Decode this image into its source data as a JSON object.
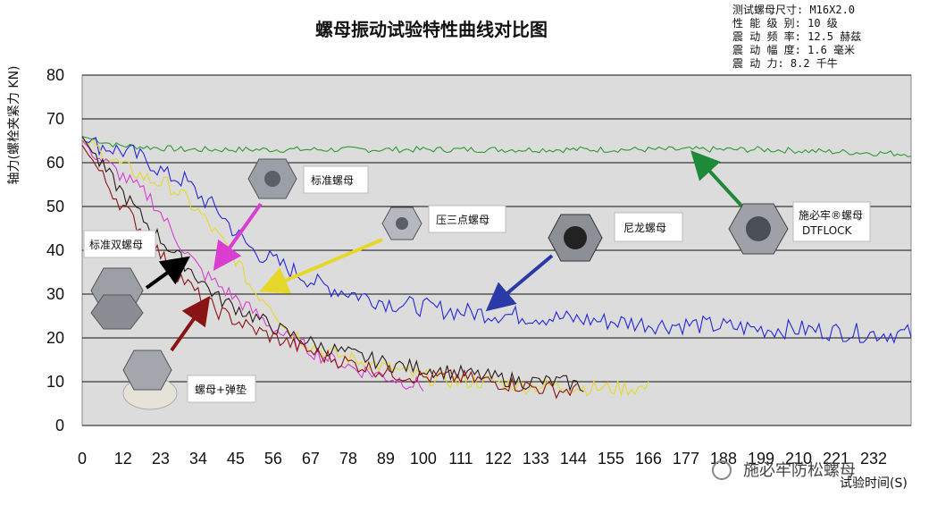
{
  "chart_data": {
    "type": "line",
    "title": "螺母振动试验特性曲线对比图",
    "ylabel": "轴力(螺栓夹紧力 KN)",
    "xlabel": "试验时间(S)",
    "ylim": [
      0,
      80
    ],
    "xlim": [
      0,
      243
    ],
    "yticks": [
      "0",
      "10",
      "20",
      "30",
      "40",
      "50",
      "60",
      "70",
      "80"
    ],
    "xticks": [
      "0",
      "12",
      "23",
      "34",
      "45",
      "56",
      "67",
      "78",
      "89",
      "100",
      "111",
      "122",
      "133",
      "144",
      "155",
      "166",
      "177",
      "188",
      "199",
      "210",
      "221",
      "232"
    ],
    "grid": true,
    "series": [
      {
        "name": "施必牢®螺母 DTFLOCK",
        "color": "#2e9a35",
        "x": [
          0,
          5,
          10,
          20,
          30,
          40,
          60,
          80,
          100,
          120,
          140,
          160,
          180,
          200,
          220,
          243
        ],
        "y": [
          66,
          65,
          64,
          63.5,
          63,
          63,
          63,
          63,
          63,
          63,
          63,
          63,
          63,
          63,
          62.5,
          62
        ]
      },
      {
        "name": "尼龙螺母",
        "color": "#2626d8",
        "x": [
          0,
          5,
          10,
          15,
          20,
          25,
          30,
          35,
          40,
          45,
          50,
          55,
          60,
          65,
          70,
          80,
          90,
          100,
          110,
          120,
          130,
          140,
          150,
          160,
          170,
          180,
          190,
          200,
          210,
          220,
          230,
          243
        ],
        "y": [
          65,
          64,
          63,
          62,
          60,
          57,
          56,
          52,
          49,
          44,
          40,
          38,
          36,
          34,
          32,
          30,
          28,
          27,
          26,
          25.5,
          25,
          24.5,
          24,
          23.5,
          23,
          23,
          22.5,
          22,
          22,
          21.5,
          21,
          21
        ]
      },
      {
        "name": "压三点螺母",
        "color": "#e6d82a",
        "x": [
          0,
          5,
          10,
          20,
          25,
          30,
          35,
          40,
          45,
          50,
          55,
          60,
          70,
          80,
          90,
          100,
          110,
          120,
          130,
          140,
          150,
          160,
          166
        ],
        "y": [
          65,
          63,
          60,
          56,
          55,
          52,
          48,
          43,
          38,
          31,
          28,
          22,
          17,
          15,
          13,
          11,
          10,
          10,
          9,
          9,
          8.5,
          8.5,
          8.5
        ]
      },
      {
        "name": "标准螺母",
        "color": "#d93ed1",
        "x": [
          0,
          5,
          10,
          15,
          20,
          25,
          30,
          35,
          40,
          45,
          50,
          55,
          60,
          70,
          80,
          90,
          100
        ],
        "y": [
          65,
          61,
          58,
          55,
          52,
          46,
          40,
          35,
          32,
          29,
          26,
          23,
          20,
          16,
          13,
          11,
          9
        ]
      },
      {
        "name": "标准双螺母",
        "color": "#2a1a1a",
        "x": [
          0,
          5,
          10,
          15,
          20,
          25,
          30,
          35,
          40,
          45,
          50,
          60,
          70,
          80,
          90,
          100,
          110,
          120,
          130,
          140,
          147
        ],
        "y": [
          66,
          60,
          55,
          50,
          45,
          41,
          37,
          33,
          29,
          27,
          25,
          21,
          18,
          16,
          14,
          13,
          12,
          11,
          10,
          10,
          9
        ]
      },
      {
        "name": "螺母+弹垫",
        "color": "#8a1414",
        "x": [
          0,
          5,
          10,
          15,
          20,
          25,
          30,
          35,
          40,
          45,
          50,
          60,
          70,
          80,
          90,
          100,
          110,
          120,
          130,
          140,
          145
        ],
        "y": [
          64,
          58,
          52,
          47,
          42,
          37,
          33,
          29,
          26,
          24,
          22,
          19,
          16,
          14,
          12,
          11,
          11,
          10,
          9,
          8,
          8
        ]
      }
    ],
    "annotations": [
      {
        "name": "nut-label-standard",
        "label": "标准螺母"
      },
      {
        "name": "nut-label-three-point",
        "label": "压三点螺母"
      },
      {
        "name": "nut-label-nylon",
        "label": "尼龙螺母"
      },
      {
        "name": "nut-label-dtflock",
        "label": "施必牢®螺母\nDTFLOCK"
      },
      {
        "name": "nut-label-double",
        "label": "标准双螺母"
      },
      {
        "name": "nut-label-washer",
        "label": "螺母+弹垫"
      }
    ]
  },
  "specs": {
    "lines": [
      "测试螺母尺寸: M16X2.0",
      "性 能 级 别: 10 级",
      "震 动 频 率: 12.5 赫兹",
      "震 动 幅 度: 1.6 毫米",
      "震   动   力: 8.2 千牛"
    ]
  },
  "labels": {
    "standard": "标准螺母",
    "three_point": "压三点螺母",
    "nylon": "尼龙螺母",
    "dtflock_1": "施必牢®螺母",
    "dtflock_2": "DTFLOCK",
    "double": "标准双螺母",
    "washer": "螺母+弹垫"
  },
  "watermark": "施必牢防松螺母"
}
